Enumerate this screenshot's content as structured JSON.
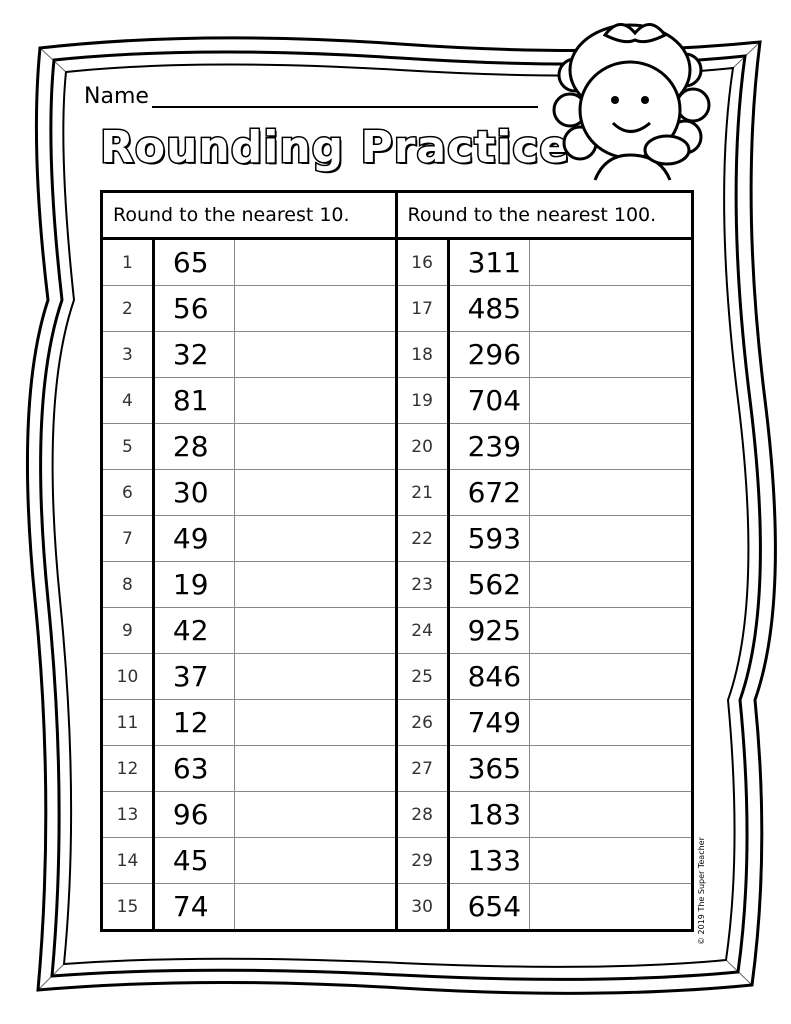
{
  "header": {
    "name_label": "Name",
    "title": "Rounding Practice"
  },
  "table": {
    "headers": [
      "Round to the nearest 10.",
      "Round to the nearest 100."
    ],
    "left": [
      {
        "n": "1",
        "v": "65"
      },
      {
        "n": "2",
        "v": "56"
      },
      {
        "n": "3",
        "v": "32"
      },
      {
        "n": "4",
        "v": "81"
      },
      {
        "n": "5",
        "v": "28"
      },
      {
        "n": "6",
        "v": "30"
      },
      {
        "n": "7",
        "v": "49"
      },
      {
        "n": "8",
        "v": "19"
      },
      {
        "n": "9",
        "v": "42"
      },
      {
        "n": "10",
        "v": "37"
      },
      {
        "n": "11",
        "v": "12"
      },
      {
        "n": "12",
        "v": "63"
      },
      {
        "n": "13",
        "v": "96"
      },
      {
        "n": "14",
        "v": "45"
      },
      {
        "n": "15",
        "v": "74"
      }
    ],
    "right": [
      {
        "n": "16",
        "v": "311"
      },
      {
        "n": "17",
        "v": "485"
      },
      {
        "n": "18",
        "v": "296"
      },
      {
        "n": "19",
        "v": "704"
      },
      {
        "n": "20",
        "v": "239"
      },
      {
        "n": "21",
        "v": "672"
      },
      {
        "n": "22",
        "v": "593"
      },
      {
        "n": "23",
        "v": "562"
      },
      {
        "n": "24",
        "v": "925"
      },
      {
        "n": "25",
        "v": "846"
      },
      {
        "n": "26",
        "v": "749"
      },
      {
        "n": "27",
        "v": "365"
      },
      {
        "n": "28",
        "v": "183"
      },
      {
        "n": "29",
        "v": "133"
      },
      {
        "n": "30",
        "v": "654"
      }
    ]
  },
  "footer": {
    "copyright": "© 2019 The Super Teacher"
  },
  "icons": {
    "border": "wavy-scribble-border",
    "illustration": "girl-clipart"
  }
}
